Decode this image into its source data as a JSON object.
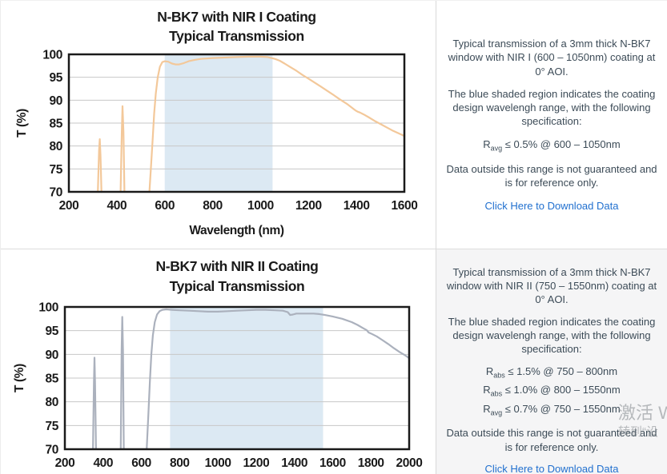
{
  "colors": {
    "link": "#2170cf",
    "panel_text": "#3c4b57",
    "chart_text": "#1a1a1a",
    "divider": "#dcdcdc",
    "panel_alt_bg": "#f5f5f6"
  },
  "panels": [
    {
      "description": "Typical transmission of a 3mm thick N-BK7 window with NIR I (600 – 1050nm) coating at 0° AOI.",
      "shaded_note": "The blue shaded region indicates the coating design wavelengh range, with the following specification:",
      "specs": [
        {
          "base": "R",
          "sub": "avg",
          "rest": " ≤ 0.5% @ 600 – 1050nm"
        }
      ],
      "disclaimer": "Data outside this range is not guaranteed and is for reference only.",
      "link_label": "Click Here to Download Data"
    },
    {
      "description": "Typical transmission of a 3mm thick N-BK7 window with NIR II (750 – 1550nm) coating at 0° AOI.",
      "shaded_note": "The blue shaded region indicates the coating design wavelengh range, with the following specification:",
      "specs": [
        {
          "base": "R",
          "sub": "abs",
          "rest": " ≤ 1.5% @ 750 – 800nm"
        },
        {
          "base": "R",
          "sub": "abs",
          "rest": " ≤ 1.0% @ 800 – 1550nm"
        },
        {
          "base": "R",
          "sub": "avg",
          "rest": " ≤ 0.7% @ 750 – 1550nm"
        }
      ],
      "disclaimer": "Data outside this range is not guaranteed and is for reference only.",
      "link_label": "Click Here to Download Data"
    }
  ],
  "watermark": {
    "line1": "激活 W",
    "line2": "转到“设"
  },
  "chart_data": [
    {
      "type": "line",
      "title": "N-BK7 with NIR I Coating",
      "subtitle": "Typical Transmission",
      "xlabel": "Wavelength (nm)",
      "ylabel": "T (%)",
      "xlim": [
        200,
        1600
      ],
      "ylim": [
        70,
        100
      ],
      "xticks": [
        200,
        400,
        600,
        800,
        1000,
        1200,
        1400,
        1600
      ],
      "yticks": [
        70,
        75,
        80,
        85,
        90,
        95,
        100
      ],
      "grid": true,
      "shaded_region": [
        600,
        1050
      ],
      "colors": {
        "line": "#f3c89a",
        "shade": "#dce9f3",
        "grid": "#c7c7c7",
        "border": "#1a1a1a"
      },
      "segments": [
        [
          [
            321,
            70
          ],
          [
            326,
            79
          ],
          [
            329,
            81.5
          ],
          [
            332,
            78
          ],
          [
            336,
            70
          ]
        ],
        [
          [
            416,
            70
          ],
          [
            421,
            83
          ],
          [
            424,
            88.7
          ],
          [
            428,
            83
          ],
          [
            432,
            70
          ]
        ],
        [
          [
            536,
            70
          ],
          [
            542,
            75
          ],
          [
            549,
            81
          ],
          [
            556,
            87
          ],
          [
            563,
            91.5
          ],
          [
            571,
            95
          ],
          [
            580,
            97.3
          ],
          [
            590,
            98.3
          ],
          [
            600,
            98.5
          ],
          [
            615,
            98.4
          ],
          [
            630,
            98.0
          ],
          [
            645,
            97.8
          ],
          [
            660,
            97.8
          ],
          [
            680,
            98.1
          ],
          [
            700,
            98.5
          ],
          [
            725,
            98.8
          ],
          [
            750,
            99.0
          ],
          [
            800,
            99.2
          ],
          [
            850,
            99.3
          ],
          [
            900,
            99.4
          ],
          [
            950,
            99.5
          ],
          [
            1000,
            99.5
          ],
          [
            1030,
            99.4
          ],
          [
            1060,
            99.0
          ],
          [
            1080,
            98.6
          ],
          [
            1100,
            98.0
          ],
          [
            1125,
            97.2
          ],
          [
            1150,
            96.4
          ],
          [
            1175,
            95.5
          ],
          [
            1200,
            94.7
          ],
          [
            1250,
            93.0
          ],
          [
            1300,
            91.3
          ],
          [
            1330,
            90.2
          ],
          [
            1360,
            89.2
          ],
          [
            1380,
            88.4
          ],
          [
            1395,
            87.8
          ],
          [
            1405,
            87.5
          ],
          [
            1415,
            87.3
          ],
          [
            1430,
            86.9
          ],
          [
            1450,
            86.3
          ],
          [
            1475,
            85.5
          ],
          [
            1500,
            84.8
          ],
          [
            1525,
            84.1
          ],
          [
            1550,
            83.4
          ],
          [
            1575,
            82.8
          ],
          [
            1600,
            82.2
          ]
        ]
      ]
    },
    {
      "type": "line",
      "title": "N-BK7 with NIR II Coating",
      "subtitle": "Typical Transmission",
      "xlabel": "",
      "ylabel": "T (%)",
      "xlim": [
        200,
        2000
      ],
      "ylim": [
        70,
        100
      ],
      "xticks": [
        200,
        400,
        600,
        800,
        1000,
        1200,
        1400,
        1600,
        1800,
        2000
      ],
      "yticks": [
        70,
        75,
        80,
        85,
        90,
        95,
        100
      ],
      "grid": true,
      "shaded_region": [
        750,
        1550
      ],
      "colors": {
        "line": "#abb1bd",
        "shade": "#dce9f3",
        "grid": "#c7c7c7",
        "border": "#1a1a1a"
      },
      "segments": [
        [
          [
            347,
            70
          ],
          [
            352,
            84
          ],
          [
            355,
            89.3
          ],
          [
            358,
            84
          ],
          [
            363,
            70
          ]
        ],
        [
          [
            492,
            70
          ],
          [
            497,
            91
          ],
          [
            500,
            97.9
          ],
          [
            504,
            91
          ],
          [
            508,
            70
          ]
        ],
        [
          [
            628,
            70
          ],
          [
            636,
            77
          ],
          [
            644,
            84
          ],
          [
            652,
            90
          ],
          [
            660,
            94
          ],
          [
            670,
            96.8
          ],
          [
            682,
            98.4
          ],
          [
            695,
            99.1
          ],
          [
            710,
            99.4
          ],
          [
            730,
            99.5
          ],
          [
            760,
            99.4
          ],
          [
            800,
            99.3
          ],
          [
            850,
            99.2
          ],
          [
            900,
            99.1
          ],
          [
            950,
            99.0
          ],
          [
            1000,
            99.0
          ],
          [
            1050,
            99.1
          ],
          [
            1100,
            99.2
          ],
          [
            1150,
            99.3
          ],
          [
            1200,
            99.4
          ],
          [
            1250,
            99.4
          ],
          [
            1300,
            99.3
          ],
          [
            1340,
            99.2
          ],
          [
            1365,
            98.9
          ],
          [
            1378,
            98.3
          ],
          [
            1392,
            98.4
          ],
          [
            1410,
            98.6
          ],
          [
            1450,
            98.6
          ],
          [
            1500,
            98.6
          ],
          [
            1530,
            98.5
          ],
          [
            1560,
            98.3
          ],
          [
            1600,
            98.0
          ],
          [
            1650,
            97.5
          ],
          [
            1700,
            96.8
          ],
          [
            1730,
            96.2
          ],
          [
            1760,
            95.5
          ],
          [
            1778,
            95.1
          ],
          [
            1788,
            94.6
          ],
          [
            1800,
            94.4
          ],
          [
            1830,
            93.8
          ],
          [
            1860,
            93.0
          ],
          [
            1890,
            92.2
          ],
          [
            1920,
            91.3
          ],
          [
            1950,
            90.5
          ],
          [
            1975,
            89.9
          ],
          [
            2000,
            89.2
          ]
        ]
      ]
    }
  ]
}
